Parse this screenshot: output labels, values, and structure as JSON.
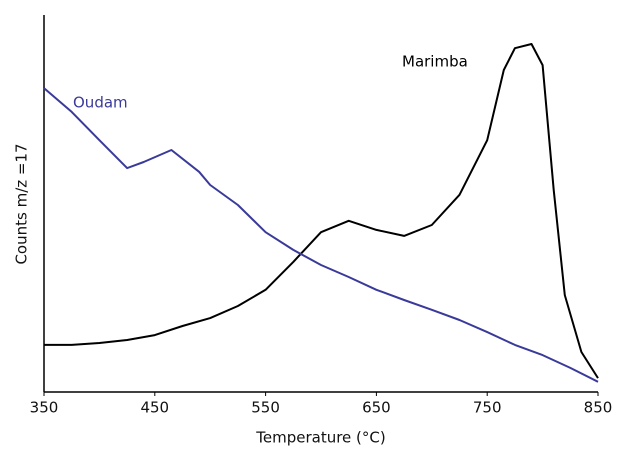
{
  "chart_data": {
    "type": "line",
    "x_label": "Temperature (°C)",
    "y_label": "Counts m/z =17",
    "xlim": [
      350,
      850
    ],
    "xticks": [
      350,
      450,
      550,
      650,
      750,
      850
    ],
    "ylim": [
      0,
      100
    ],
    "series": [
      {
        "name": "Marimba",
        "color": "#000000",
        "x": [
          350,
          375,
          400,
          425,
          450,
          475,
          500,
          525,
          550,
          575,
          600,
          625,
          650,
          675,
          700,
          725,
          750,
          765,
          775,
          790,
          800,
          810,
          820,
          835,
          850
        ],
        "values": [
          12.5,
          12.5,
          13,
          13.8,
          15.1,
          17.5,
          19.6,
          22.8,
          27.1,
          34.5,
          42.4,
          45.4,
          43,
          41.4,
          44.3,
          52.3,
          66.8,
          85.4,
          91.2,
          92.3,
          86.7,
          53.6,
          25.7,
          10.6,
          3.7
        ]
      },
      {
        "name": "Oudam",
        "color": "#3a3a9a",
        "x": [
          350,
          375,
          400,
          425,
          440,
          465,
          490,
          500,
          525,
          550,
          575,
          600,
          625,
          650,
          675,
          700,
          725,
          750,
          775,
          800,
          825,
          850
        ],
        "values": [
          80.6,
          74.3,
          66.8,
          59.4,
          61,
          64.2,
          58.4,
          54.9,
          49.6,
          42.4,
          37.7,
          33.7,
          30.5,
          27.1,
          24.4,
          21.8,
          19.1,
          15.9,
          12.5,
          9.8,
          6.4,
          2.7
        ]
      }
    ]
  }
}
